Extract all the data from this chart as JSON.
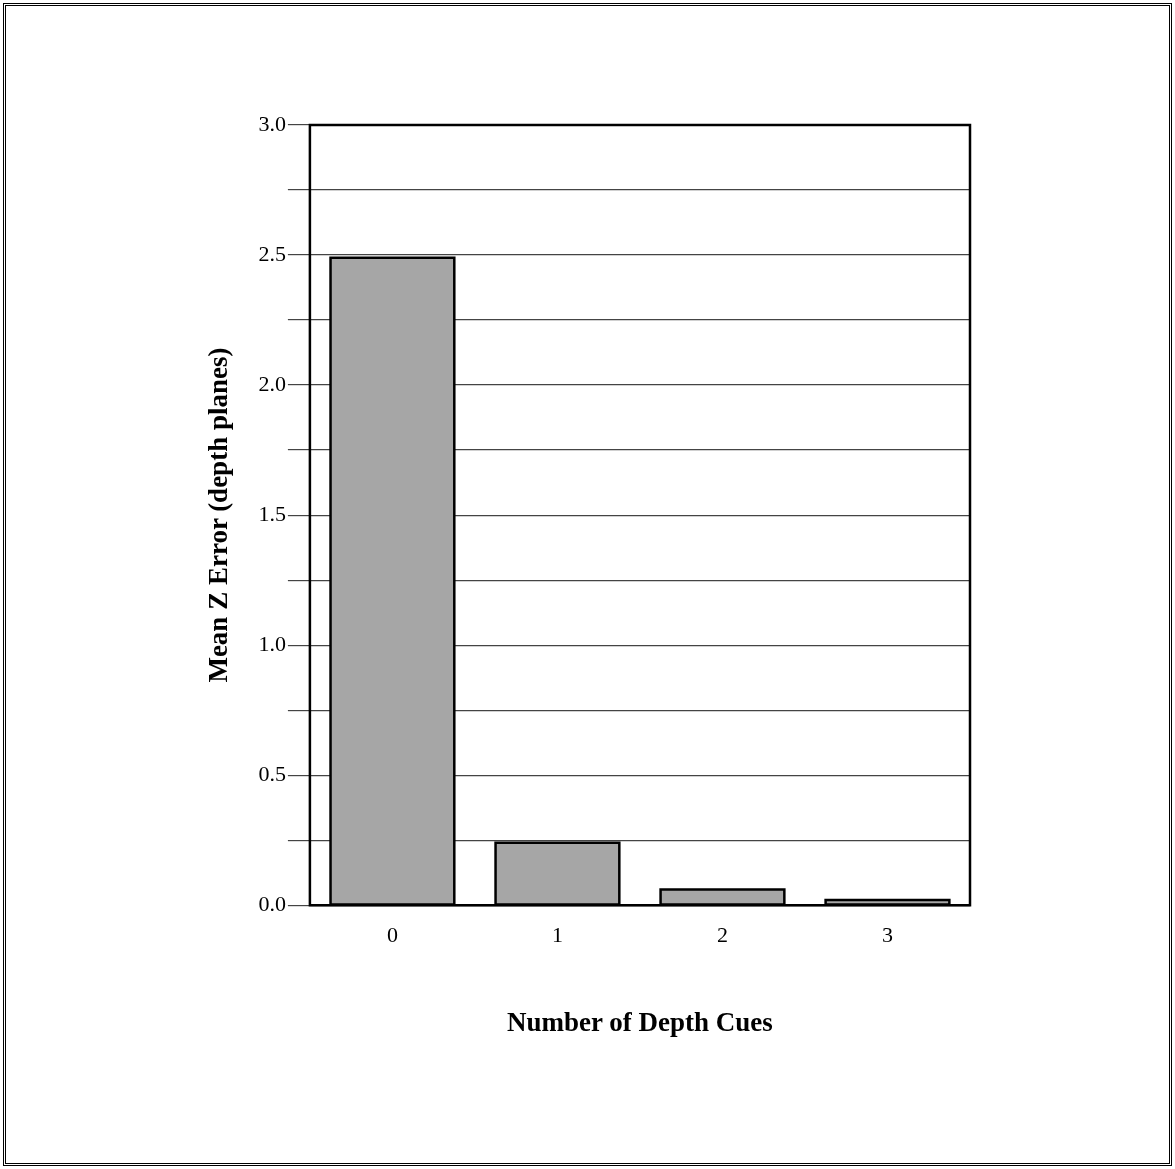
{
  "chart_data": {
    "type": "bar",
    "xlabel": "Number of Depth Cues",
    "ylabel": "Mean Z Error (depth planes)",
    "categories": [
      "0",
      "1",
      "2",
      "3"
    ],
    "values": [
      2.49,
      0.24,
      0.06,
      0.02
    ],
    "color": "#a6a6a6",
    "ylim": [
      0,
      3.0
    ],
    "yticks": [
      {
        "value": 0,
        "label": "0.0"
      },
      {
        "value": 0.25,
        "label": null
      },
      {
        "value": 0.5,
        "label": "0.5"
      },
      {
        "value": 0.75,
        "label": null
      },
      {
        "value": 1,
        "label": "1.0"
      },
      {
        "value": 1.25,
        "label": null
      },
      {
        "value": 1.5,
        "label": "1.5"
      },
      {
        "value": 1.75,
        "label": null
      },
      {
        "value": 2,
        "label": "2.0"
      },
      {
        "value": 2.25,
        "label": null
      },
      {
        "value": 2.5,
        "label": "2.5"
      },
      {
        "value": 2.75,
        "label": null
      },
      {
        "value": 3,
        "label": "3.0"
      }
    ],
    "grid": "y"
  }
}
